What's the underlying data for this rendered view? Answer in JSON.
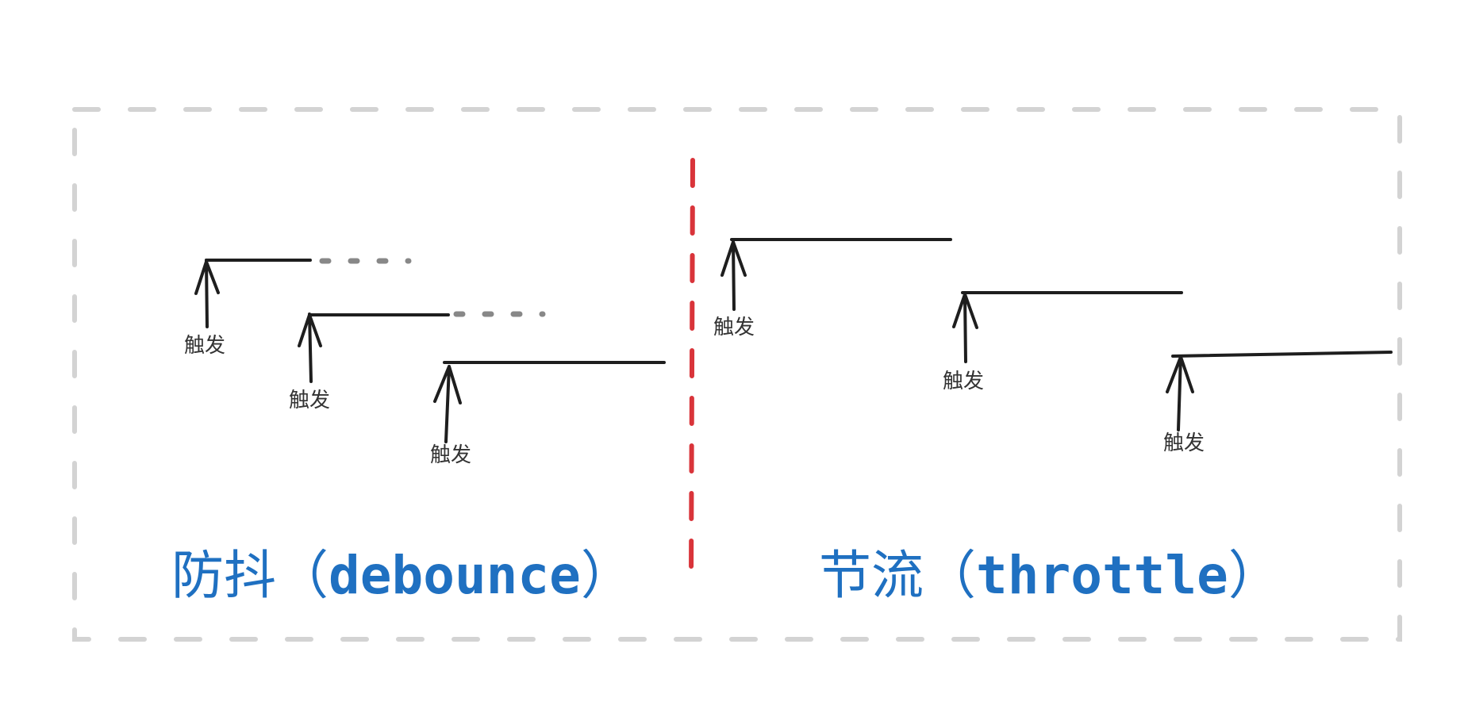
{
  "colors": {
    "frame": "#d3d3d3",
    "divider": "#d9343a",
    "stroke": "#1e1e1e",
    "pending": "#888888",
    "title": "#1f70c1"
  },
  "trigger_label": "触发",
  "debounce": {
    "title_cn": "防抖",
    "paren_open": "（",
    "title_en": "debounce",
    "paren_close": "）"
  },
  "throttle": {
    "title_cn": "节流",
    "paren_open": "（",
    "title_en": "throttle",
    "paren_close": "）"
  }
}
